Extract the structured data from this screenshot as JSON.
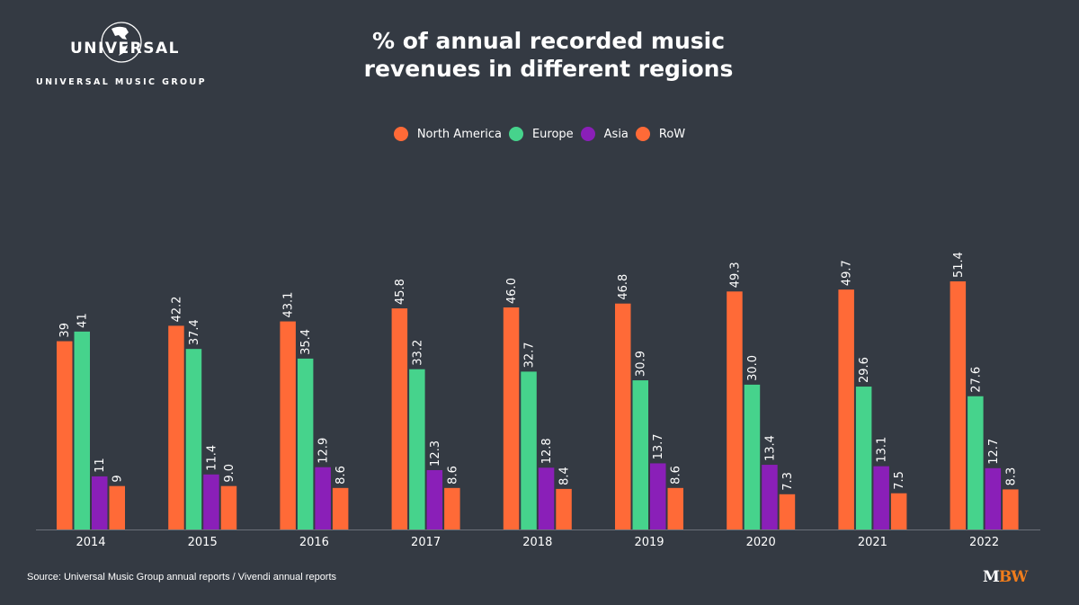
{
  "brand": {
    "logo_word": "UNIVERSAL",
    "logo_subtitle": "UNIVERSAL MUSIC GROUP",
    "watermark_m": "M",
    "watermark_bw": "BW"
  },
  "footer": {
    "source": "Source: Universal Music Group annual reports / Vivendi annual reports"
  },
  "chart_data": {
    "type": "bar",
    "title": "% of annual recorded music revenues in different regions",
    "title_lines": [
      "% of annual recorded music",
      "revenues in different regions"
    ],
    "xlabel": "",
    "ylabel": "",
    "ylim": [
      0,
      52
    ],
    "grid": false,
    "legend_position": "top-center",
    "categories": [
      "2014",
      "2015",
      "2016",
      "2017",
      "2018",
      "2019",
      "2020",
      "2021",
      "2022"
    ],
    "series": [
      {
        "name": "North America",
        "color": "#ff6a37",
        "values": [
          39,
          42.2,
          43.1,
          45.8,
          46.0,
          46.8,
          49.3,
          49.7,
          51.4
        ],
        "labels": [
          "39",
          "42.2",
          "43.1",
          "45.8",
          "46.0",
          "46.8",
          "49.3",
          "49.7",
          "51.4"
        ]
      },
      {
        "name": "Europe",
        "color": "#46d38c",
        "values": [
          41,
          37.4,
          35.4,
          33.2,
          32.7,
          30.9,
          30.0,
          29.6,
          27.6
        ],
        "labels": [
          "41",
          "37.4",
          "35.4",
          "33.2",
          "32.7",
          "30.9",
          "30.0",
          "29.6",
          "27.6"
        ]
      },
      {
        "name": "Asia",
        "color": "#8a1fb8",
        "values": [
          11,
          11.4,
          12.9,
          12.3,
          12.8,
          13.7,
          13.4,
          13.1,
          12.7
        ],
        "labels": [
          "11",
          "11.4",
          "12.9",
          "12.3",
          "12.8",
          "13.7",
          "13.4",
          "13.1",
          "12.7"
        ]
      },
      {
        "name": "RoW",
        "color": "#ff6a37",
        "values": [
          9,
          9.0,
          8.6,
          8.6,
          8.4,
          8.6,
          7.3,
          7.5,
          8.3
        ],
        "labels": [
          "9",
          "9.0",
          "8.6",
          "8.6",
          "8.4",
          "8.6",
          "7.3",
          "7.5",
          "8.3"
        ]
      }
    ]
  }
}
